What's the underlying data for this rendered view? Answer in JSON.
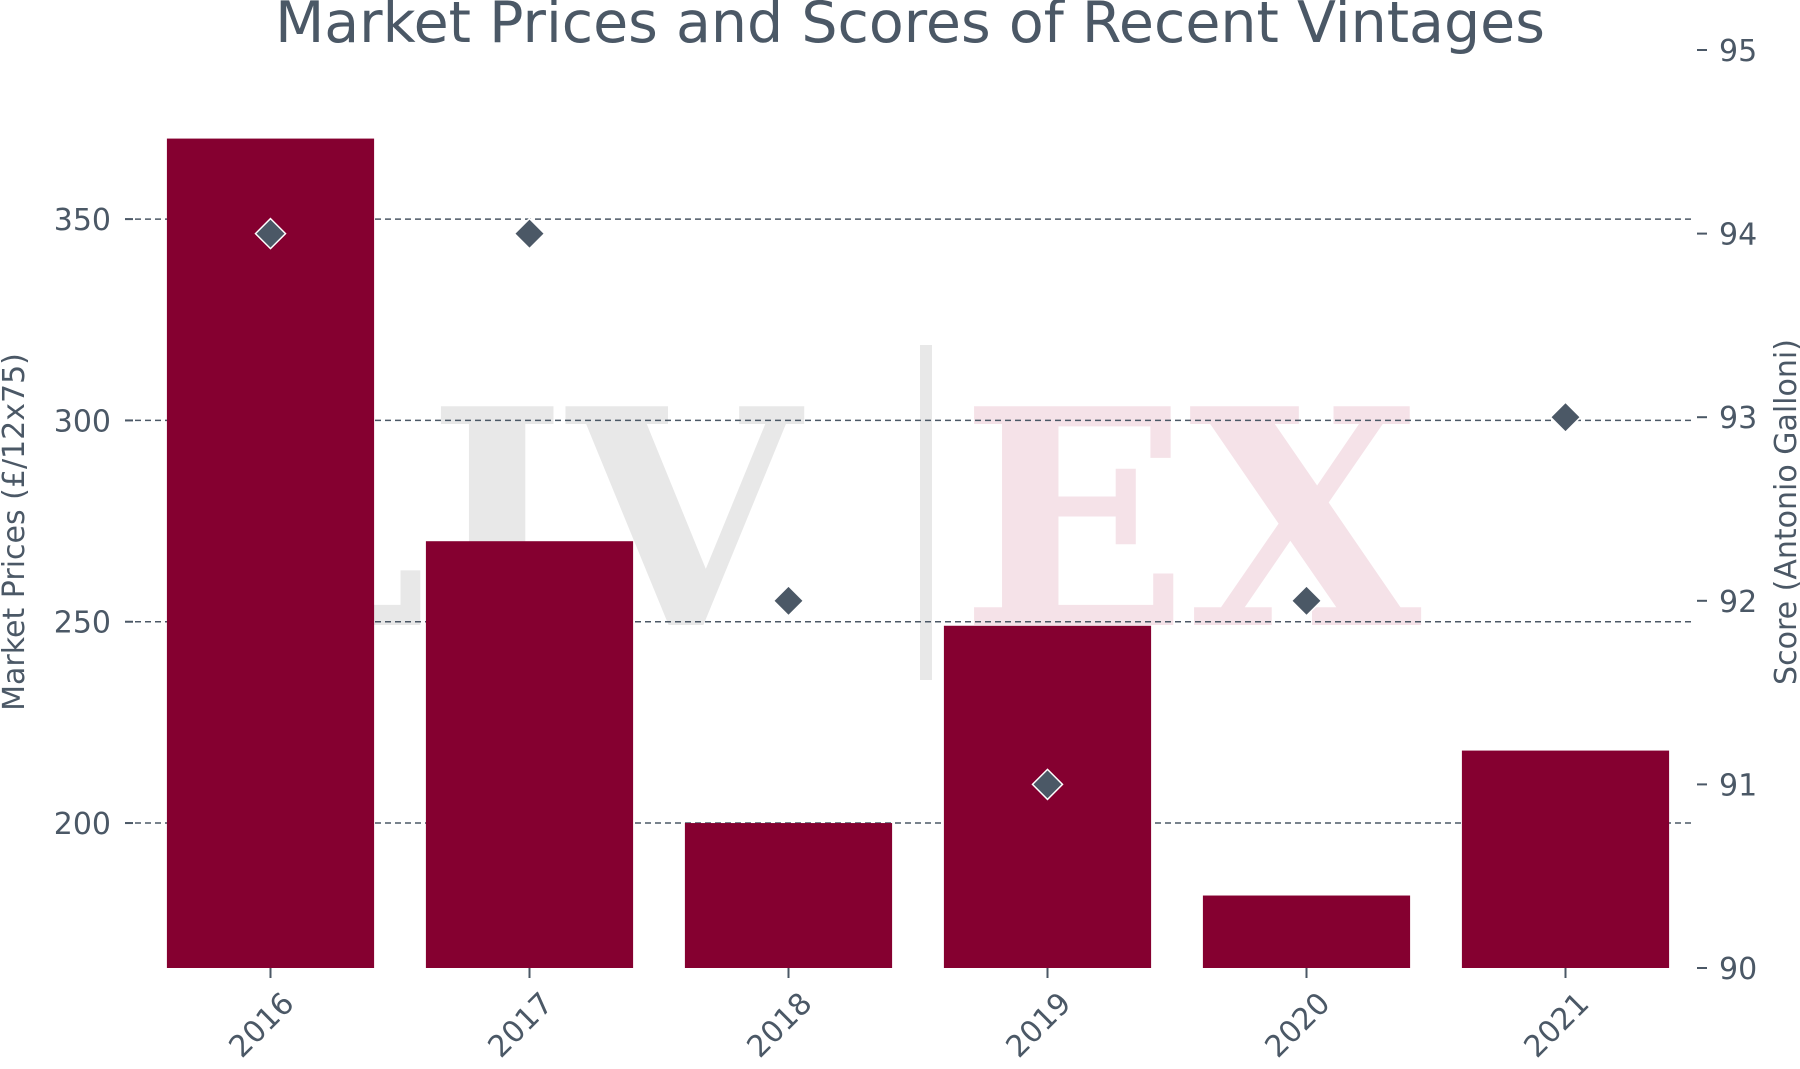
{
  "chart_data": {
    "type": "bar",
    "title": "Market Prices and Scores of Recent Vintages",
    "categories": [
      "2016",
      "2017",
      "2018",
      "2019",
      "2020",
      "2021"
    ],
    "series": [
      {
        "name": "Market Prices",
        "kind": "bar",
        "axis": "left",
        "values": [
          370,
          270,
          200,
          249,
          182,
          218
        ],
        "color": "#850030"
      },
      {
        "name": "Score",
        "kind": "scatter",
        "axis": "right",
        "marker": "diamond",
        "values": [
          94,
          94,
          92,
          91,
          92,
          93
        ],
        "color": "#4b5866"
      }
    ],
    "ylabel": "Market Prices (£/12x75)",
    "y2label": "Score (Antonio Galloni)",
    "ylim": [
      164,
      392
    ],
    "y2lim": [
      90,
      95
    ],
    "yticks": [
      "200",
      "250",
      "300",
      "350"
    ],
    "y2ticks": [
      "90",
      "91",
      "92",
      "93",
      "94",
      "95"
    ],
    "grid": true,
    "watermark": {
      "left": "LIV",
      "right": "EX"
    },
    "colors": {
      "text": "#4b5866",
      "watermark_grey": "#e8e8e8",
      "watermark_pink": "#f5e2e8"
    }
  }
}
